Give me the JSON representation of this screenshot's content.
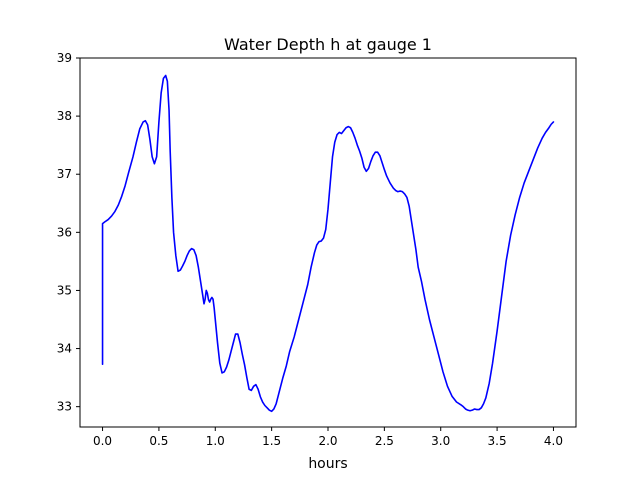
{
  "chart_data": {
    "type": "line",
    "title": "Water Depth h at gauge 1",
    "xlabel": "hours",
    "ylabel": "",
    "xlim": [
      -0.2,
      4.2
    ],
    "ylim": [
      32.65,
      39.0
    ],
    "x_ticks": [
      0.0,
      0.5,
      1.0,
      1.5,
      2.0,
      2.5,
      3.0,
      3.5,
      4.0
    ],
    "x_tick_labels": [
      "0.0",
      "0.5",
      "1.0",
      "1.5",
      "2.0",
      "2.5",
      "3.0",
      "3.5",
      "4.0"
    ],
    "y_ticks": [
      33,
      34,
      35,
      36,
      37,
      38,
      39
    ],
    "y_tick_labels": [
      "33",
      "34",
      "35",
      "36",
      "37",
      "38",
      "39"
    ],
    "grid": false,
    "legend": "none",
    "series": [
      {
        "color": "#0000ff",
        "x": [
          0.0,
          0.0,
          0.02,
          0.05,
          0.08,
          0.11,
          0.14,
          0.17,
          0.2,
          0.23,
          0.27,
          0.3,
          0.33,
          0.36,
          0.38,
          0.4,
          0.42,
          0.44,
          0.46,
          0.48,
          0.5,
          0.52,
          0.54,
          0.56,
          0.575,
          0.59,
          0.6,
          0.615,
          0.63,
          0.65,
          0.67,
          0.69,
          0.71,
          0.73,
          0.75,
          0.77,
          0.79,
          0.81,
          0.83,
          0.85,
          0.87,
          0.89,
          0.9,
          0.91,
          0.92,
          0.93,
          0.94,
          0.95,
          0.96,
          0.97,
          0.98,
          0.99,
          1.0,
          1.02,
          1.04,
          1.06,
          1.08,
          1.1,
          1.12,
          1.14,
          1.16,
          1.18,
          1.2,
          1.22,
          1.24,
          1.26,
          1.28,
          1.3,
          1.32,
          1.34,
          1.36,
          1.38,
          1.4,
          1.42,
          1.44,
          1.46,
          1.48,
          1.5,
          1.52,
          1.54,
          1.56,
          1.58,
          1.6,
          1.63,
          1.66,
          1.7,
          1.74,
          1.78,
          1.82,
          1.85,
          1.88,
          1.9,
          1.92,
          1.94,
          1.96,
          1.98,
          2.0,
          2.02,
          2.04,
          2.06,
          2.08,
          2.1,
          2.12,
          2.14,
          2.16,
          2.18,
          2.2,
          2.22,
          2.24,
          2.26,
          2.28,
          2.3,
          2.32,
          2.34,
          2.36,
          2.38,
          2.4,
          2.42,
          2.44,
          2.46,
          2.48,
          2.5,
          2.52,
          2.55,
          2.58,
          2.6,
          2.62,
          2.64,
          2.66,
          2.68,
          2.7,
          2.72,
          2.74,
          2.76,
          2.78,
          2.8,
          2.83,
          2.86,
          2.9,
          2.94,
          2.98,
          3.02,
          3.06,
          3.1,
          3.14,
          3.18,
          3.2,
          3.22,
          3.24,
          3.26,
          3.28,
          3.3,
          3.32,
          3.34,
          3.36,
          3.38,
          3.4,
          3.43,
          3.46,
          3.5,
          3.54,
          3.58,
          3.62,
          3.66,
          3.7,
          3.74,
          3.78,
          3.82,
          3.86,
          3.9,
          3.93,
          3.96,
          3.98,
          4.0
        ],
        "y": [
          33.73,
          36.15,
          36.18,
          36.22,
          36.28,
          36.36,
          36.47,
          36.62,
          36.8,
          37.02,
          37.3,
          37.55,
          37.78,
          37.9,
          37.92,
          37.85,
          37.6,
          37.3,
          37.18,
          37.3,
          37.9,
          38.4,
          38.65,
          38.7,
          38.6,
          38.1,
          37.4,
          36.6,
          36.0,
          35.6,
          35.33,
          35.35,
          35.42,
          35.5,
          35.6,
          35.68,
          35.72,
          35.7,
          35.6,
          35.4,
          35.15,
          34.9,
          34.77,
          34.85,
          35.0,
          34.95,
          34.84,
          34.8,
          34.85,
          34.88,
          34.85,
          34.7,
          34.5,
          34.1,
          33.75,
          33.58,
          33.6,
          33.68,
          33.8,
          33.95,
          34.1,
          34.25,
          34.25,
          34.1,
          33.9,
          33.72,
          33.5,
          33.3,
          33.28,
          33.35,
          33.38,
          33.3,
          33.17,
          33.08,
          33.02,
          32.98,
          32.94,
          32.92,
          32.96,
          33.05,
          33.2,
          33.35,
          33.5,
          33.7,
          33.95,
          34.2,
          34.5,
          34.8,
          35.1,
          35.4,
          35.65,
          35.78,
          35.84,
          35.85,
          35.9,
          36.05,
          36.4,
          36.85,
          37.3,
          37.55,
          37.68,
          37.72,
          37.7,
          37.75,
          37.8,
          37.82,
          37.8,
          37.72,
          37.62,
          37.5,
          37.4,
          37.28,
          37.12,
          37.05,
          37.1,
          37.22,
          37.32,
          37.38,
          37.38,
          37.32,
          37.2,
          37.08,
          36.97,
          36.85,
          36.76,
          36.72,
          36.7,
          36.71,
          36.7,
          36.66,
          36.6,
          36.45,
          36.2,
          35.95,
          35.7,
          35.4,
          35.15,
          34.85,
          34.5,
          34.2,
          33.9,
          33.6,
          33.35,
          33.18,
          33.08,
          33.03,
          33.0,
          32.96,
          32.94,
          32.93,
          32.94,
          32.96,
          32.95,
          32.95,
          32.98,
          33.05,
          33.15,
          33.4,
          33.75,
          34.3,
          34.9,
          35.5,
          35.95,
          36.3,
          36.6,
          36.85,
          37.05,
          37.25,
          37.45,
          37.62,
          37.72,
          37.8,
          37.86,
          37.9
        ]
      }
    ]
  }
}
